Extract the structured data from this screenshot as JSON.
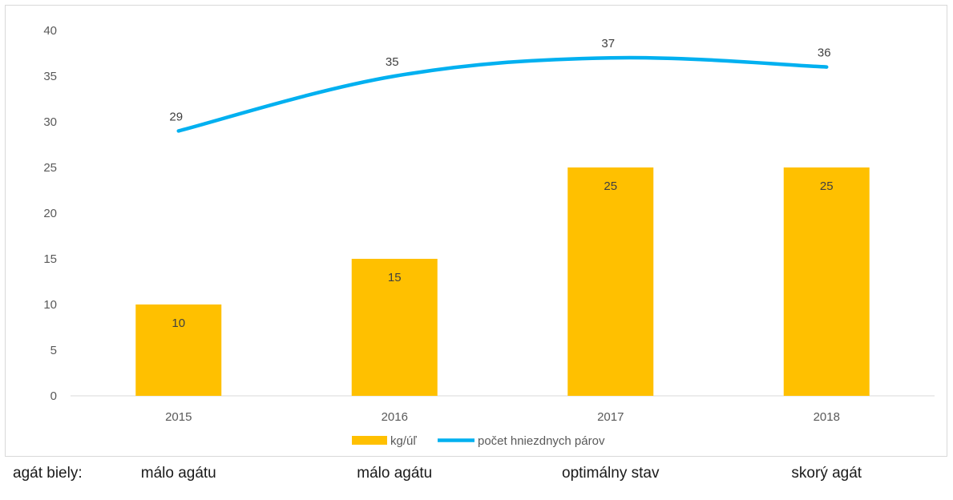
{
  "chart_data": {
    "type": "bar",
    "categories": [
      "2015",
      "2016",
      "2017",
      "2018"
    ],
    "series": [
      {
        "name": "kg/úľ",
        "type": "bar",
        "color": "#FFC000",
        "values": [
          10,
          15,
          25,
          25
        ]
      },
      {
        "name": "počet hniezdnych párov",
        "type": "line",
        "color": "#00B0F0",
        "values": [
          29,
          35,
          37,
          36
        ]
      }
    ],
    "yticks": [
      "0",
      "5",
      "10",
      "15",
      "20",
      "25",
      "30",
      "35",
      "40"
    ],
    "ylim": [
      0,
      40
    ],
    "legend_position": "bottom",
    "grid": false
  },
  "footer": {
    "label": "agát biely:",
    "notes": [
      "málo agátu",
      "málo agátu",
      "optimálny stav",
      "skorý agát"
    ]
  }
}
